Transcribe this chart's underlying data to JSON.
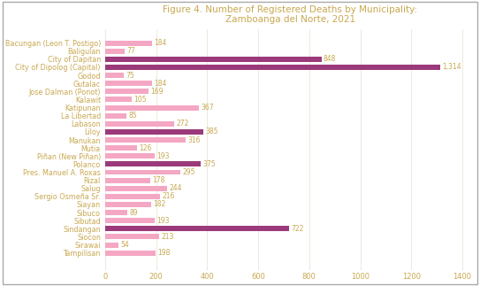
{
  "title": "Figure 4. Number of Registered Deaths by Municipality:\nZamboanga del Norte, 2021",
  "municipalities": [
    "Bacungan (Leon T. Postigo)",
    "Baligulan",
    "City of Dapitan",
    "City of Dipolog (Capital)",
    "Godod",
    "Gutalac",
    "Jose Dalman (Ponot)",
    "Kalawit",
    "Katipunan",
    "La Libertad",
    "Labason",
    "Liloy",
    "Manukan",
    "Mutia",
    "Piñan (New Piñan)",
    "Polanco",
    "Pres. Manuel A. Roxas",
    "Rizal",
    "Salug",
    "Sergio Osmeña Sr.",
    "Siayan",
    "Sibuco",
    "Sibutad",
    "Sindangan",
    "Siocon",
    "Sirawai",
    "Tampilisan"
  ],
  "values": [
    184,
    77,
    848,
    1314,
    75,
    184,
    169,
    105,
    367,
    85,
    272,
    385,
    316,
    126,
    193,
    375,
    295,
    178,
    244,
    216,
    182,
    89,
    193,
    722,
    213,
    54,
    198
  ],
  "value_labels": [
    "184",
    "77",
    "848",
    "1,314",
    "75",
    "184",
    "169",
    "105",
    "367",
    "85",
    "272",
    "385",
    "316",
    "126",
    "193",
    "375",
    "295",
    "178",
    "244",
    "216",
    "182",
    "89",
    "193",
    "722",
    "213",
    "54",
    "198"
  ],
  "bar_colors": [
    "#f4a7c3",
    "#f4a7c3",
    "#9b3a7a",
    "#9b3a7a",
    "#f4a7c3",
    "#f4a7c3",
    "#f4a7c3",
    "#f4a7c3",
    "#f4a7c3",
    "#f4a7c3",
    "#f4a7c3",
    "#9b3a7a",
    "#f4a7c3",
    "#f4a7c3",
    "#f4a7c3",
    "#9b3a7a",
    "#f4a7c3",
    "#f4a7c3",
    "#f4a7c3",
    "#f4a7c3",
    "#f4a7c3",
    "#f4a7c3",
    "#f4a7c3",
    "#9b3a7a",
    "#f4a7c3",
    "#f4a7c3",
    "#f4a7c3"
  ],
  "xlim": [
    0,
    1450
  ],
  "xticks": [
    0,
    200,
    400,
    600,
    800,
    1000,
    1200,
    1400
  ],
  "background_color": "#ffffff",
  "plot_bg_color": "#ffffff",
  "title_color": "#c8a850",
  "label_color": "#c8a850",
  "value_color": "#c8a850",
  "tick_color": "#c8a850",
  "grid_color": "#e8e0d0",
  "border_color": "#aaaaaa",
  "title_fontsize": 7.5,
  "label_fontsize": 5.8,
  "value_fontsize": 5.5,
  "tick_fontsize": 6.0
}
